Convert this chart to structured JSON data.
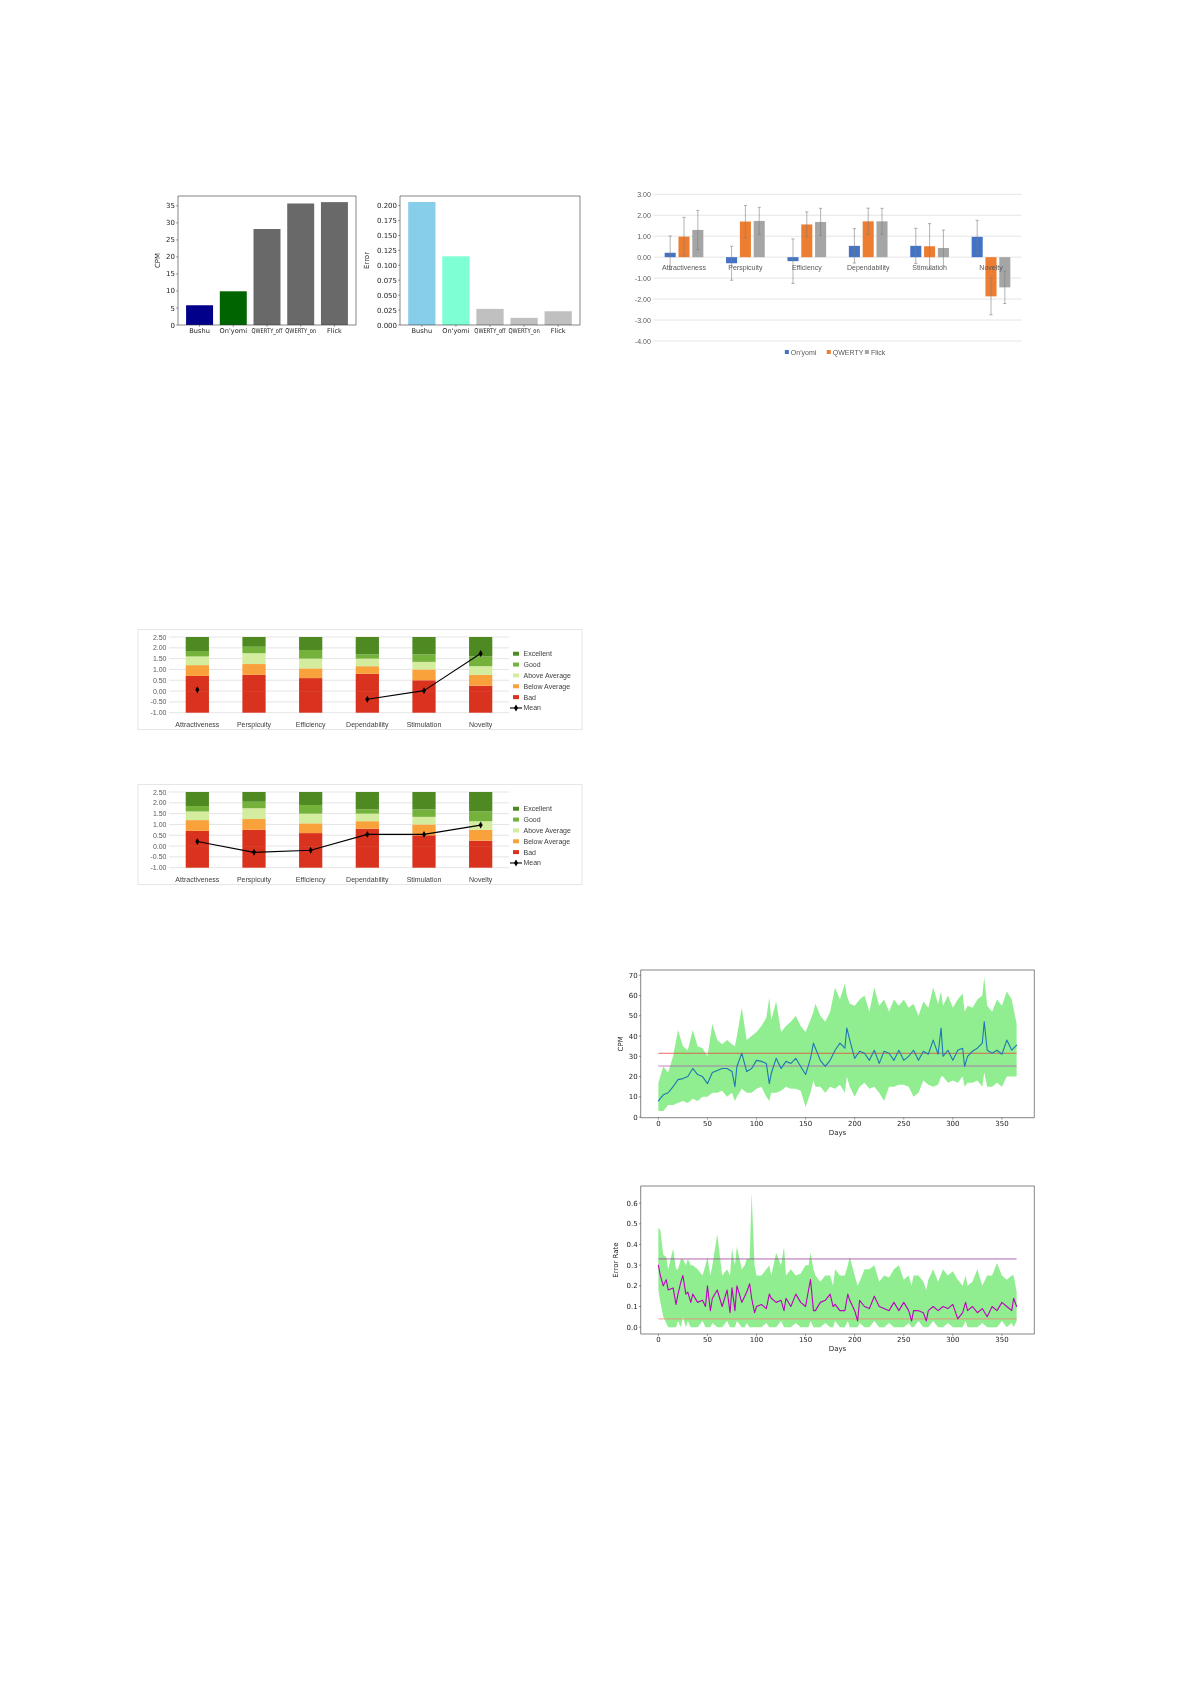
{
  "chart_data": [
    {
      "type": "bar",
      "categories": [
        "Bushu",
        "On'yomi",
        "QWERTY_off",
        "QWERTY_on",
        "Flick"
      ],
      "values": [
        5.8,
        9.9,
        28.2,
        35.7,
        36.1
      ],
      "colors": [
        "#00008b",
        "#006400",
        "#696969",
        "#696969",
        "#696969"
      ],
      "ylabel": "CPM",
      "ylim": [
        0,
        37.9
      ],
      "yticks": [
        0,
        5,
        10,
        15,
        20,
        25,
        30,
        35
      ]
    },
    {
      "type": "bar",
      "categories": [
        "Bushu",
        "On'yomi",
        "QWERTY_off",
        "QWERTY_on",
        "Flick"
      ],
      "values": [
        0.206,
        0.115,
        0.027,
        0.012,
        0.023
      ],
      "colors": [
        "#87ceeb",
        "#7fffd4",
        "#c0c0c0",
        "#c0c0c0",
        "#c0c0c0"
      ],
      "ylabel": "Error",
      "ylim": [
        0,
        0.216
      ],
      "yticks": [
        {
          "value": 0,
          "label": "0.000"
        },
        {
          "value": 0.025,
          "label": "0.025"
        },
        {
          "value": 0.05,
          "label": "0.050"
        },
        {
          "value": 0.075,
          "label": "0.075"
        },
        {
          "value": 0.1,
          "label": "0.100"
        },
        {
          "value": 0.125,
          "label": "0.125"
        },
        {
          "value": 0.15,
          "label": "0.150"
        },
        {
          "value": 0.175,
          "label": "0.175"
        },
        {
          "value": 0.2,
          "label": "0.200"
        }
      ]
    },
    {
      "type": "bar",
      "categories": [
        "Attractiveness",
        "Perspicuity",
        "Efficiency",
        "Dependability",
        "Stimulation",
        "Novelty"
      ],
      "series": [
        {
          "name": "On'yomi",
          "color": "#4472c4",
          "values": [
            0.21,
            -0.29,
            -0.19,
            0.54,
            0.54,
            0.97
          ],
          "errors": [
            0.8,
            0.81,
            1.06,
            0.82,
            0.84,
            0.79
          ]
        },
        {
          "name": "QWERTY",
          "color": "#ed7d31",
          "values": [
            0.98,
            1.7,
            1.56,
            1.71,
            0.52,
            -1.87
          ],
          "errors": [
            0.92,
            0.77,
            0.6,
            0.63,
            1.08,
            0.88
          ]
        },
        {
          "name": "Flick",
          "color": "#a5a5a5",
          "values": [
            1.3,
            1.73,
            1.68,
            1.71,
            0.44,
            -1.44
          ],
          "errors": [
            0.93,
            0.65,
            0.65,
            0.62,
            0.85,
            0.77
          ]
        }
      ],
      "ylim": [
        -4,
        3
      ],
      "yticks": [
        {
          "value": -4,
          "label": "-4.00"
        },
        {
          "value": -3,
          "label": "-3.00"
        },
        {
          "value": -2,
          "label": "-2.00"
        },
        {
          "value": -1,
          "label": "-1.00"
        },
        {
          "value": 0,
          "label": "0.00"
        },
        {
          "value": 1,
          "label": "1.00"
        },
        {
          "value": 2,
          "label": "2.00"
        },
        {
          "value": 3,
          "label": "3.00"
        }
      ],
      "grid": "y",
      "legend": "bottom"
    },
    {
      "type": "bar",
      "categories": [
        "Attractiveness",
        "Perspicuity",
        "Efficiency",
        "Dependability",
        "Stimulation",
        "Novelty"
      ],
      "stacked": true,
      "series": [
        {
          "color": "#d9331f",
          "values": [
            -1,
            -1,
            -1,
            -1,
            -1,
            -1
          ]
        },
        {
          "name": "Bad",
          "color": "#d9331f",
          "values": [
            0.7,
            0.75,
            0.6,
            0.8,
            0.5,
            0.25
          ]
        },
        {
          "name": "Below Average",
          "color": "#f9a13a",
          "values": [
            0.5,
            0.5,
            0.45,
            0.35,
            0.5,
            0.5
          ]
        },
        {
          "name": "Above Average",
          "color": "#d4ec9e",
          "values": [
            0.4,
            0.5,
            0.45,
            0.35,
            0.35,
            0.4
          ]
        },
        {
          "name": "Good",
          "color": "#74b23b",
          "values": [
            0.25,
            0.3,
            0.4,
            0.2,
            0.35,
            0.45
          ]
        },
        {
          "name": "Excellent",
          "color": "#4e8a21",
          "values": [
            0.65,
            0.45,
            0.6,
            0.8,
            0.8,
            0.9
          ]
        },
        {
          "type": "line",
          "name": "Mean",
          "color": "#000000",
          "values": [
            0.06,
            null,
            null,
            -0.38,
            0.02,
            1.74
          ]
        }
      ],
      "marker": "diamond",
      "ylim": [
        -1,
        2.5
      ],
      "yticks": [
        {
          "value": -1,
          "label": "-1.00"
        },
        {
          "value": -0.5,
          "label": "-0.50"
        },
        {
          "value": 0,
          "label": "0.00"
        },
        {
          "value": 0.5,
          "label": "0.50"
        },
        {
          "value": 1,
          "label": "1.00"
        },
        {
          "value": 1.5,
          "label": "1.50"
        },
        {
          "value": 2,
          "label": "2.00"
        },
        {
          "value": 2.5,
          "label": "2.50"
        }
      ],
      "grid": "y",
      "legend": "right"
    },
    {
      "type": "bar",
      "categories": [
        "Attractiveness",
        "Perspicuity",
        "Efficiency",
        "Dependability",
        "Stimulation",
        "Novelty"
      ],
      "stacked": true,
      "series": [
        {
          "color": "#d9331f",
          "values": [
            -1,
            -1,
            -1,
            -1,
            -1,
            -1
          ]
        },
        {
          "name": "Bad",
          "color": "#d9331f",
          "values": [
            0.7,
            0.75,
            0.6,
            0.8,
            0.5,
            0.25
          ]
        },
        {
          "name": "Below Average",
          "color": "#f9a13a",
          "values": [
            0.5,
            0.5,
            0.45,
            0.35,
            0.5,
            0.5
          ]
        },
        {
          "name": "Above Average",
          "color": "#d4ec9e",
          "values": [
            0.4,
            0.5,
            0.45,
            0.35,
            0.35,
            0.4
          ]
        },
        {
          "name": "Good",
          "color": "#74b23b",
          "values": [
            0.25,
            0.3,
            0.4,
            0.2,
            0.35,
            0.45
          ]
        },
        {
          "name": "Excellent",
          "color": "#4e8a21",
          "values": [
            0.65,
            0.45,
            0.6,
            0.8,
            0.8,
            0.9
          ]
        },
        {
          "type": "line",
          "name": "Mean",
          "color": "#000000",
          "values": [
            0.21,
            -0.29,
            -0.19,
            0.54,
            0.54,
            0.97
          ]
        }
      ],
      "marker": "diamond",
      "ylim": [
        -1,
        2.5
      ],
      "yticks": [
        {
          "value": -1,
          "label": "-1.00"
        },
        {
          "value": -0.5,
          "label": "-0.50"
        },
        {
          "value": 0,
          "label": "0.00"
        },
        {
          "value": 0.5,
          "label": "0.50"
        },
        {
          "value": 1,
          "label": "1.00"
        },
        {
          "value": 1.5,
          "label": "1.50"
        },
        {
          "value": 2,
          "label": "2.00"
        },
        {
          "value": 2.5,
          "label": "2.50"
        }
      ],
      "grid": "y",
      "legend": "right"
    },
    {
      "type": "line",
      "x": [
        0,
        5,
        10,
        15,
        20,
        25,
        30,
        35,
        40,
        45,
        50,
        55,
        60,
        65,
        70,
        75,
        78,
        80,
        85,
        90,
        95,
        100,
        105,
        110,
        113,
        115,
        120,
        125,
        130,
        135,
        140,
        145,
        150,
        155,
        158,
        160,
        165,
        170,
        175,
        180,
        185,
        190,
        192,
        195,
        200,
        205,
        210,
        215,
        220,
        225,
        230,
        235,
        240,
        245,
        250,
        255,
        260,
        265,
        270,
        275,
        280,
        285,
        288,
        290,
        295,
        300,
        305,
        310,
        312,
        315,
        320,
        325,
        330,
        332,
        335,
        340,
        345,
        350,
        355,
        360,
        365
      ],
      "series": [
        {
          "color": "#1f77b4",
          "values": [
            8,
            11,
            12,
            15,
            18.5,
            19,
            20,
            24,
            21,
            20,
            16.5,
            22,
            23,
            24,
            24,
            22.5,
            15,
            25,
            31.5,
            22.5,
            24,
            28,
            27.5,
            26.5,
            16.5,
            21.5,
            29,
            24,
            27.5,
            26.5,
            29,
            25,
            21,
            29,
            36.5,
            34,
            28,
            25,
            28,
            33,
            36.5,
            34,
            44,
            38,
            29,
            32.5,
            31.5,
            28,
            33,
            26.5,
            32.5,
            31.5,
            28,
            33,
            28,
            30,
            33,
            28,
            32.5,
            31,
            38,
            31,
            44,
            30,
            33,
            28,
            33,
            34,
            25,
            30,
            32.5,
            34,
            36.5,
            47,
            33,
            31.5,
            33,
            31,
            38,
            33,
            35.5
          ],
          "lower": [
            3,
            3,
            6,
            6,
            7,
            8,
            7,
            9,
            8,
            10,
            10,
            12,
            12,
            13,
            10,
            12,
            8,
            10,
            14,
            12,
            12,
            14,
            15,
            10,
            8,
            12,
            12,
            13,
            15,
            14,
            14,
            13,
            5,
            12,
            18,
            15,
            15,
            12,
            15,
            14,
            16,
            12,
            20,
            15,
            10,
            15,
            17,
            14,
            15,
            12,
            8,
            15,
            15,
            16,
            16,
            15,
            10,
            12,
            18,
            16,
            15,
            16,
            20,
            20,
            17,
            18,
            17,
            20,
            15,
            17,
            17,
            18,
            15,
            22,
            15,
            15,
            17,
            15,
            20,
            20,
            20
          ],
          "upper": [
            17,
            25,
            22,
            30,
            43,
            35,
            33,
            43,
            35,
            34,
            30,
            46,
            38,
            36,
            38,
            36,
            35,
            40,
            54,
            38,
            40,
            42,
            45,
            49,
            59,
            48,
            57,
            42,
            45,
            47,
            50,
            45,
            42,
            48,
            52,
            56,
            50,
            47,
            52,
            64,
            58,
            66,
            60,
            56,
            55,
            58,
            60,
            52,
            64,
            55,
            58,
            52,
            58,
            55,
            58,
            54,
            56,
            50,
            57,
            54,
            64,
            56,
            62,
            55,
            60,
            54,
            58,
            61,
            52,
            55,
            54,
            58,
            60,
            69,
            55,
            52,
            58,
            55,
            62,
            58,
            46
          ]
        }
      ],
      "xlabel": "Days",
      "ylabel": "CPM",
      "xlim": [
        -18,
        383
      ],
      "xticks": [
        0,
        50,
        100,
        150,
        200,
        250,
        300,
        350
      ],
      "ylim": [
        -0.3,
        72.6
      ],
      "yticks": [
        0,
        10,
        20,
        30,
        40,
        50,
        60,
        70
      ],
      "ref_lines": [
        {
          "axis": "y",
          "value": 31.5,
          "color": "#e8453c"
        },
        {
          "axis": "y",
          "value": 25.2,
          "color": "#b461b4"
        }
      ]
    },
    {
      "type": "line",
      "x": [
        0,
        2,
        5,
        8,
        10,
        15,
        18,
        20,
        23,
        25,
        28,
        30,
        33,
        35,
        40,
        45,
        48,
        50,
        53,
        55,
        60,
        65,
        70,
        73,
        75,
        78,
        80,
        85,
        88,
        90,
        93,
        95,
        98,
        100,
        105,
        110,
        113,
        115,
        120,
        125,
        128,
        130,
        135,
        140,
        145,
        150,
        153,
        155,
        158,
        160,
        165,
        170,
        175,
        178,
        180,
        185,
        190,
        193,
        195,
        200,
        203,
        205,
        210,
        215,
        220,
        225,
        230,
        235,
        240,
        245,
        250,
        255,
        258,
        260,
        265,
        270,
        273,
        275,
        280,
        285,
        290,
        295,
        300,
        305,
        310,
        313,
        315,
        320,
        325,
        330,
        335,
        340,
        345,
        350,
        355,
        360,
        362,
        365
      ],
      "series": [
        {
          "color": "#bf00bf",
          "values": [
            0.3,
            0.25,
            0.2,
            0.23,
            0.18,
            0.19,
            0.11,
            0.16,
            0.22,
            0.25,
            0.16,
            0.17,
            0.12,
            0.16,
            0.12,
            0.13,
            0.1,
            0.2,
            0.08,
            0.14,
            0.18,
            0.1,
            0.18,
            0.07,
            0.19,
            0.08,
            0.2,
            0.12,
            0.15,
            0.17,
            0.21,
            0.14,
            0.07,
            0.1,
            0.11,
            0.09,
            0.16,
            0.14,
            0.12,
            0.13,
            0.08,
            0.14,
            0.1,
            0.16,
            0.12,
            0.1,
            0.18,
            0.23,
            0.08,
            0.08,
            0.12,
            0.13,
            0.16,
            0.1,
            0.11,
            0.08,
            0.08,
            0.16,
            0.13,
            0.08,
            0.03,
            0.13,
            0.1,
            0.09,
            0.15,
            0.1,
            0.09,
            0.08,
            0.12,
            0.08,
            0.12,
            0.08,
            0.03,
            0.08,
            0.08,
            0.07,
            0.03,
            0.08,
            0.1,
            0.08,
            0.1,
            0.09,
            0.11,
            0.04,
            0.07,
            0.12,
            0.08,
            0.1,
            0.07,
            0.09,
            0.05,
            0.1,
            0.08,
            0.12,
            0.1,
            0.08,
            0.14,
            0.1
          ],
          "lower": [
            0.18,
            0.12,
            0.05,
            0.02,
            0,
            0,
            0,
            0.03,
            0,
            0.05,
            0,
            0.03,
            0,
            0,
            0,
            0.03,
            0,
            0,
            0,
            0.02,
            0,
            0,
            0.03,
            0,
            0,
            0,
            0.03,
            0,
            0,
            0.02,
            0,
            0,
            0,
            0,
            0,
            0.02,
            0,
            0,
            0,
            0.03,
            0,
            0,
            0,
            0.02,
            0,
            0,
            0,
            0.03,
            0,
            0,
            0,
            0.02,
            0,
            0,
            0.03,
            0,
            0,
            0.03,
            0,
            0,
            0,
            0.02,
            0,
            0,
            0.03,
            0,
            0,
            0.02,
            0,
            0,
            0,
            0.02,
            0,
            0,
            0.03,
            0,
            0,
            0,
            0.03,
            0,
            0,
            0.02,
            0,
            0,
            0,
            0.03,
            0,
            0,
            0,
            0.02,
            0,
            0,
            0,
            0.03,
            0,
            0.02,
            0,
            0.03
          ],
          "upper": [
            0.48,
            0.47,
            0.35,
            0.34,
            0.28,
            0.38,
            0.28,
            0.28,
            0.33,
            0.33,
            0.3,
            0.33,
            0.3,
            0.3,
            0.28,
            0.25,
            0.3,
            0.34,
            0.25,
            0.3,
            0.45,
            0.25,
            0.28,
            0.25,
            0.38,
            0.3,
            0.39,
            0.28,
            0.3,
            0.33,
            0.33,
            0.65,
            0.3,
            0.25,
            0.25,
            0.28,
            0.3,
            0.25,
            0.36,
            0.3,
            0.39,
            0.25,
            0.28,
            0.25,
            0.26,
            0.3,
            0.3,
            0.36,
            0.28,
            0.25,
            0.22,
            0.25,
            0.25,
            0.2,
            0.28,
            0.25,
            0.25,
            0.3,
            0.34,
            0.25,
            0.2,
            0.22,
            0.28,
            0.28,
            0.3,
            0.22,
            0.25,
            0.24,
            0.28,
            0.3,
            0.23,
            0.25,
            0.2,
            0.25,
            0.25,
            0.22,
            0.18,
            0.23,
            0.28,
            0.22,
            0.28,
            0.25,
            0.27,
            0.23,
            0.2,
            0.25,
            0.2,
            0.22,
            0.28,
            0.2,
            0.25,
            0.25,
            0.31,
            0.25,
            0.23,
            0.25,
            0.25,
            0.17
          ]
        }
      ],
      "xlabel": "Days",
      "ylabel": "Error Rate",
      "xlim": [
        -18,
        383
      ],
      "xticks": [
        0,
        50,
        100,
        150,
        200,
        250,
        300,
        350
      ],
      "ylim": [
        -0.033,
        0.683
      ],
      "yticks": [
        {
          "value": 0,
          "label": "0.0"
        },
        0.1,
        0.2,
        0.3,
        0.4,
        0.5,
        0.6
      ],
      "ref_lines": [
        {
          "axis": "y",
          "value": 0.33,
          "color": "#9c3f9c"
        },
        {
          "axis": "y",
          "value": 0.04,
          "color": "#ef8476"
        }
      ]
    }
  ]
}
